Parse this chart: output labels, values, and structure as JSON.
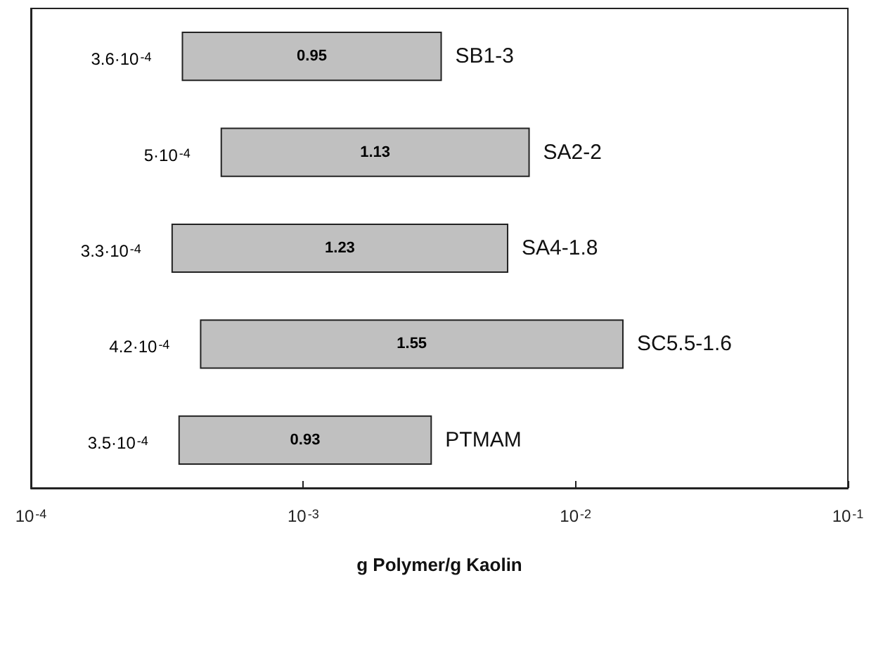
{
  "chart_data": {
    "type": "bar",
    "orientation": "horizontal",
    "log": "x",
    "xlabel": "g Polymer/g Kaolin",
    "categories": [
      "SB1-3",
      "SA2-2",
      "SA4-1.8",
      "SC5.5-1.6",
      "PTMAM"
    ],
    "base": [
      0.00036,
      0.0005,
      0.00033,
      0.00042,
      0.00035
    ],
    "values": [
      0.00285,
      0.00625,
      0.0053,
      0.0145,
      0.0026
    ],
    "color": "#c0c0c0",
    "xlim": [
      0.0001,
      0.1
    ],
    "xticks": [
      {
        "value": 0.0001,
        "label": "10$^{-4}$"
      },
      {
        "value": 0.001,
        "label": "10$^{-3}$"
      },
      {
        "value": 0.01,
        "label": "10$^{-2}$"
      },
      {
        "value": 0.1,
        "label": "10$^{-1}$"
      }
    ],
    "annotations": [
      {
        "text": "3.6·10$^{-4}$",
        "x": 0.00036,
        "y": "SB1-3"
      },
      {
        "text": "5·10$^{-4}$",
        "x": 0.0005,
        "y": "SA2-2"
      },
      {
        "text": "3.3·10$^{-4}$",
        "x": 0.00033,
        "y": "SA4-1.8"
      },
      {
        "text": "4.2·10$^{-4}$",
        "x": 0.00042,
        "y": "SC5.5-1.6"
      },
      {
        "text": "3.5·10$^{-4}$",
        "x": 0.00035,
        "y": "PTMAM"
      },
      "0.95",
      "1.13",
      "1.23",
      "1.55",
      "0.93"
    ],
    "grid": false,
    "legend": false
  }
}
